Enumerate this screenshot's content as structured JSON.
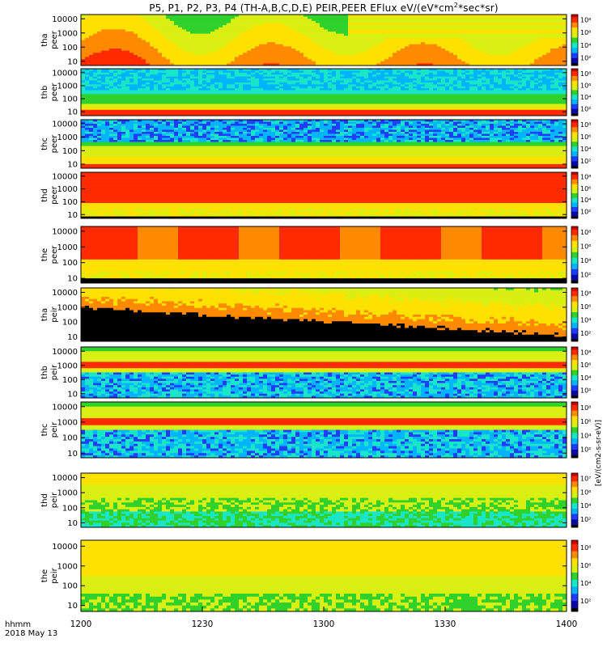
{
  "title": "P5, P1, P2, P3, P4 (TH-A,B,C,D,E) PEIR,PEER EFlux eV/(eV*cm",
  "title_sup": "2",
  "title_tail": "*sec*sr)",
  "time_label": "hhmm",
  "date_label": "2018 May 13",
  "unit_label": "[eV/(cm2-s-sr-eV)]",
  "colors": {
    "background": "#ffffff",
    "colormap": [
      "#000000",
      "#0b06a8",
      "#1f3cff",
      "#00b4ff",
      "#19e6c8",
      "#2fd12b",
      "#d9ef11",
      "#ffe100",
      "#ff8a00",
      "#ff2a00",
      "#c80000"
    ]
  },
  "chart_data": {
    "type": "heatmap",
    "title": "P5, P1, P2, P3, P4 (TH-A,B,C,D,E) PEIR,PEER EFlux eV/(eV*cm2*sec*sr)",
    "x": {
      "ticks": [
        "1200",
        "1230",
        "1300",
        "1330",
        "1400"
      ],
      "range": [
        "1200",
        "1400"
      ],
      "label": "hhmm",
      "date": "2018 May 13"
    },
    "y": {
      "scale": "log",
      "ticks": [
        "10",
        "100",
        "1000",
        "10000"
      ]
    },
    "colorbar": {
      "scale": "log",
      "ticks": [
        "10²",
        "10⁴",
        "10⁶"
      ]
    },
    "panels": [
      {
        "id": "tha-peer",
        "label_top": "tha",
        "label_bottom": "peer",
        "style": "tha_peer",
        "cb_max": "10⁸"
      },
      {
        "id": "thb-peer",
        "label_top": "thb",
        "label_bottom": "peer",
        "style": "peer_quiet",
        "cb_max": "10⁸"
      },
      {
        "id": "thc-peer",
        "label_top": "thc",
        "label_bottom": "peer",
        "style": "thc_peer",
        "cb_max": "10⁸"
      },
      {
        "id": "thd-peer",
        "label_top": "thd",
        "label_bottom": "peer",
        "style": "thd_peer",
        "cb_max": "10⁸"
      },
      {
        "id": "the-peer",
        "label_top": "the",
        "label_bottom": "peer",
        "style": "the_peer",
        "cb_max": "10⁸"
      },
      {
        "id": "tha-peir",
        "label_top": "tha",
        "label_bottom": "peir",
        "style": "tha_peir",
        "cb_max": "10⁸"
      },
      {
        "id": "thb-peir",
        "label_top": "thb",
        "label_bottom": "peir",
        "style": "peir_quiet",
        "cb_max": "10⁸"
      },
      {
        "id": "thc-peir",
        "label_top": "thc",
        "label_bottom": "peir",
        "style": "peir_quiet",
        "cb_max": "10⁸"
      },
      {
        "id": "thd-peir",
        "label_top": "thd",
        "label_bottom": "peir",
        "style": "thd_peir",
        "cb_max": "10⁷"
      },
      {
        "id": "the-peir",
        "label_top": "the",
        "label_bottom": "peir",
        "style": "the_peir",
        "cb_max": "10⁸"
      }
    ]
  }
}
